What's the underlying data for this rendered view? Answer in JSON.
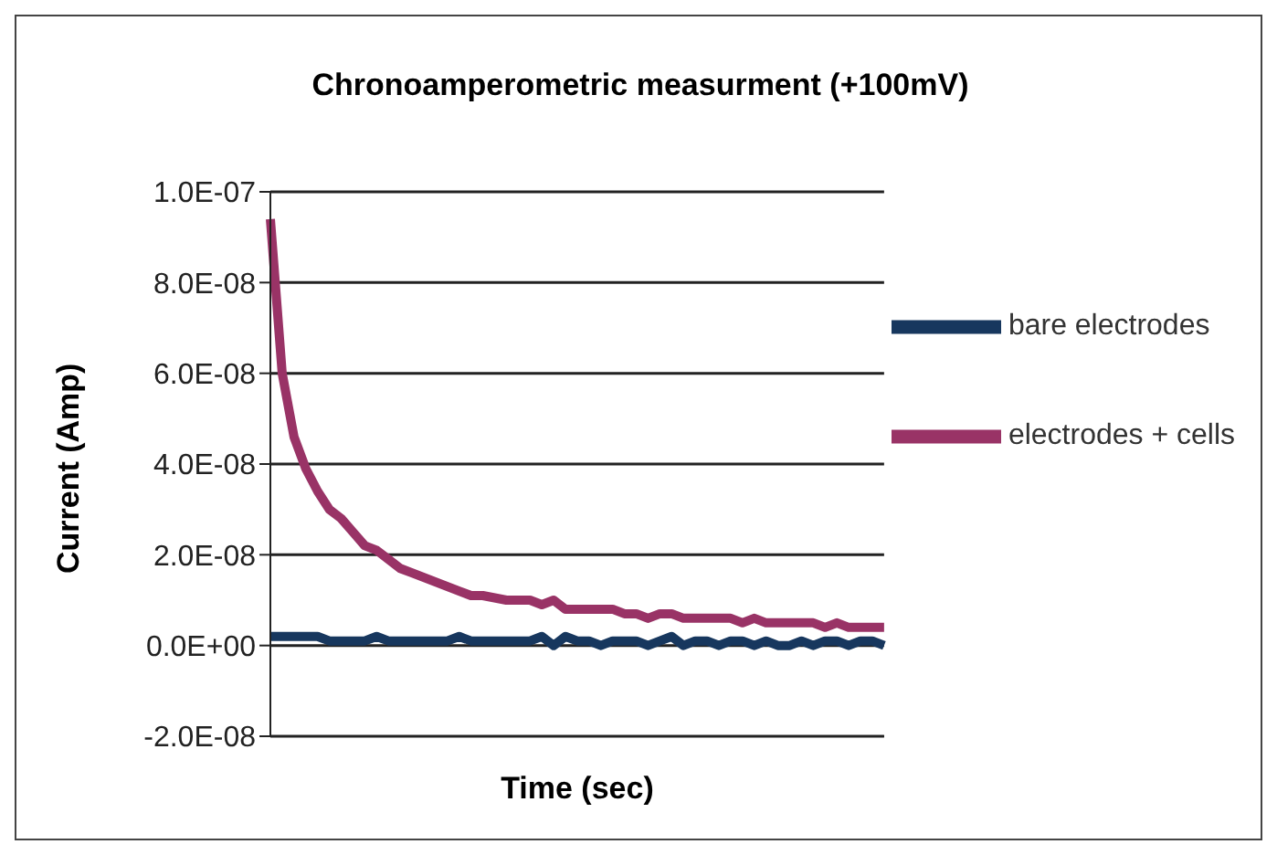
{
  "chart_data": {
    "type": "line",
    "title": "Chronoamperometric measurment (+100mV)",
    "xlabel": "Time (sec)",
    "ylabel": "Current (Amp)",
    "categories": [
      null,
      null,
      null,
      null,
      null,
      null,
      null,
      null,
      null,
      null,
      null,
      null,
      null,
      null,
      null,
      null,
      null,
      null,
      null,
      null,
      null,
      null,
      null,
      null,
      null,
      null,
      null,
      null,
      null,
      null,
      null,
      null,
      null,
      null,
      null,
      null,
      null,
      null,
      null,
      null,
      null,
      null,
      null,
      null,
      null,
      null,
      null,
      null,
      null,
      null,
      null,
      null,
      null
    ],
    "series": [
      {
        "name": "bare electrodes",
        "color": "#17375e",
        "values": [
          2e-09,
          2e-09,
          2e-09,
          2e-09,
          2e-09,
          1e-09,
          1e-09,
          1e-09,
          1e-09,
          2e-09,
          1e-09,
          1e-09,
          1e-09,
          1e-09,
          1e-09,
          1e-09,
          2e-09,
          1e-09,
          1e-09,
          1e-09,
          1e-09,
          1e-09,
          1e-09,
          2e-09,
          0,
          2e-09,
          1e-09,
          1e-09,
          0,
          1e-09,
          1e-09,
          1e-09,
          0,
          1e-09,
          2e-09,
          0,
          1e-09,
          1e-09,
          0,
          1e-09,
          1e-09,
          0,
          1e-09,
          0,
          0,
          1e-09,
          0,
          1e-09,
          1e-09,
          0,
          1e-09,
          1e-09,
          0
        ]
      },
      {
        "name": "electrodes + cells",
        "color": "#993366",
        "values": [
          9.4e-08,
          6e-08,
          4.6e-08,
          3.9e-08,
          3.4e-08,
          3e-08,
          2.8e-08,
          2.5e-08,
          2.2e-08,
          2.1e-08,
          1.9e-08,
          1.7e-08,
          1.6e-08,
          1.5e-08,
          1.4e-08,
          1.3e-08,
          1.2e-08,
          1.1e-08,
          1.1e-08,
          1.05e-08,
          1e-08,
          1e-08,
          1e-08,
          9e-09,
          1e-08,
          8e-09,
          8e-09,
          8e-09,
          8e-09,
          8e-09,
          7e-09,
          7e-09,
          6e-09,
          7e-09,
          7e-09,
          6e-09,
          6e-09,
          6e-09,
          6e-09,
          6e-09,
          5e-09,
          6e-09,
          5e-09,
          5e-09,
          5e-09,
          5e-09,
          5e-09,
          4e-09,
          5e-09,
          4e-09,
          4e-09,
          4e-09,
          4e-09
        ]
      }
    ],
    "ylim": [
      -2e-08,
      1e-07
    ],
    "yticks": [
      {
        "value": -2e-08,
        "label": "-2.0E-08"
      },
      {
        "value": 0,
        "label": "0.0E+00"
      },
      {
        "value": 2e-08,
        "label": "2.0E-08"
      },
      {
        "value": 4e-08,
        "label": "4.0E-08"
      },
      {
        "value": 6e-08,
        "label": "6.0E-08"
      },
      {
        "value": 8e-08,
        "label": "8.0E-08"
      },
      {
        "value": 1e-07,
        "label": "1.0E-07"
      }
    ],
    "grid": "y",
    "legend": "top right",
    "tick_labels": "y",
    "marker": "none",
    "line_style": "solid"
  }
}
